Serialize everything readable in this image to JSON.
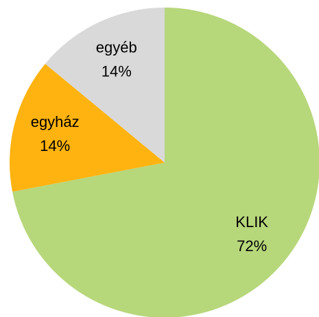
{
  "chart_data": {
    "type": "pie",
    "categories": [
      "KLIK",
      "egyház",
      "egyéb"
    ],
    "values": [
      72,
      14,
      14
    ],
    "value_labels": [
      "72%",
      "14%",
      "14%"
    ],
    "colors": [
      "#b7d77b",
      "#ffb310",
      "#d9d9d9"
    ]
  }
}
